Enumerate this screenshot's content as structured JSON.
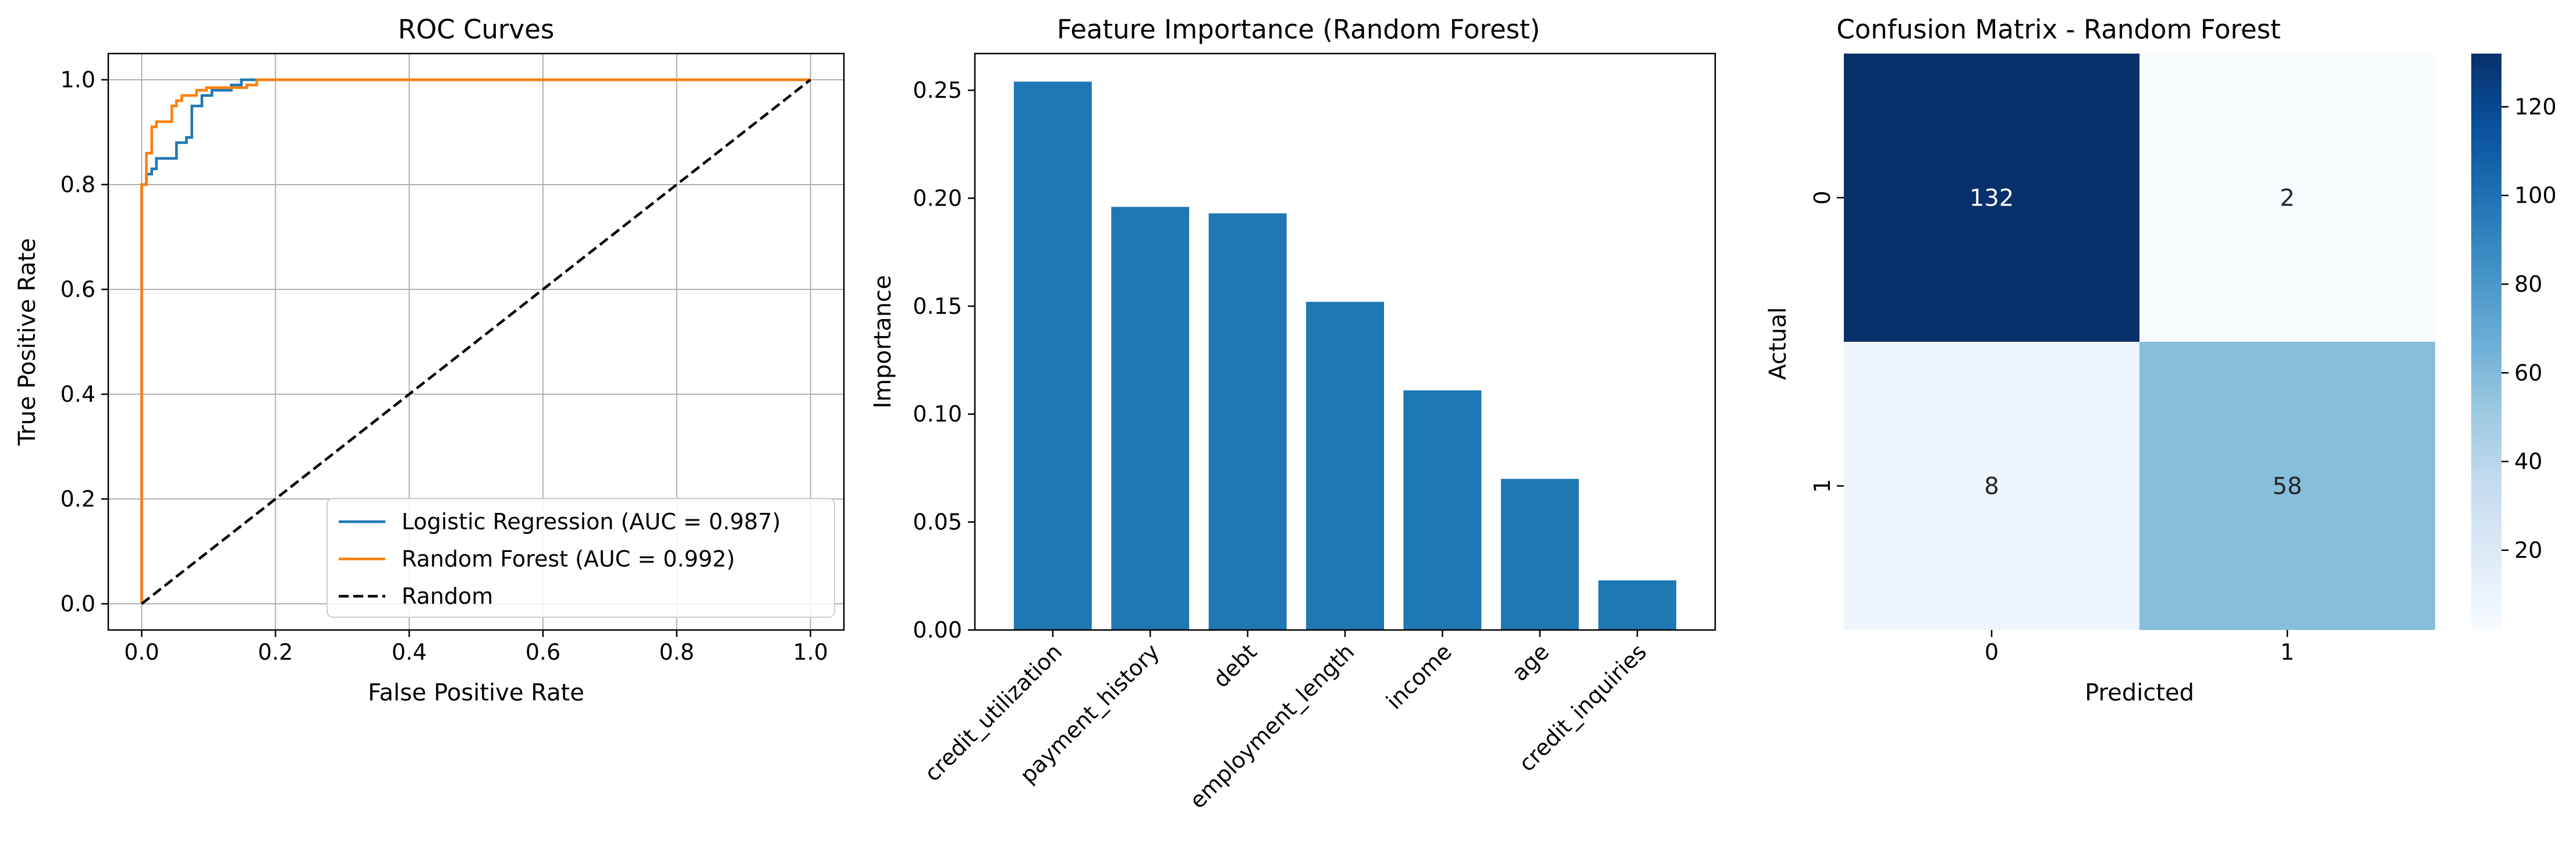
{
  "chart_data": [
    {
      "type": "line",
      "title": "ROC Curves",
      "xlabel": "False Positive Rate",
      "ylabel": "True Positive Rate",
      "xlim": [
        -0.05,
        1.05
      ],
      "ylim": [
        -0.05,
        1.05
      ],
      "x_ticks": [
        0.0,
        0.2,
        0.4,
        0.6,
        0.8,
        1.0
      ],
      "y_ticks": [
        0.0,
        0.2,
        0.4,
        0.6,
        0.8,
        1.0
      ],
      "x_tick_labels": [
        "0.0",
        "0.2",
        "0.4",
        "0.6",
        "0.8",
        "1.0"
      ],
      "y_tick_labels": [
        "0.0",
        "0.2",
        "0.4",
        "0.6",
        "0.8",
        "1.0"
      ],
      "grid": true,
      "legend": "lower-right",
      "series": [
        {
          "name": "Logistic Regression (AUC = 0.987)",
          "color": "#1f77b4",
          "style": "solid",
          "x": [
            0,
            0,
            0.007,
            0.007,
            0.015,
            0.015,
            0.022,
            0.022,
            0.052,
            0.052,
            0.067,
            0.067,
            0.075,
            0.075,
            0.09,
            0.09,
            0.105,
            0.105,
            0.134,
            0.134,
            0.149,
            0.149,
            1.0
          ],
          "y": [
            0,
            0.8,
            0.8,
            0.82,
            0.82,
            0.83,
            0.83,
            0.85,
            0.85,
            0.88,
            0.88,
            0.89,
            0.89,
            0.95,
            0.95,
            0.97,
            0.97,
            0.98,
            0.98,
            0.99,
            0.99,
            1.0,
            1.0
          ]
        },
        {
          "name": "Random Forest (AUC = 0.992)",
          "color": "#ff7f0e",
          "style": "solid",
          "x": [
            0,
            0,
            0.007,
            0.007,
            0.015,
            0.015,
            0.022,
            0.022,
            0.045,
            0.045,
            0.052,
            0.052,
            0.06,
            0.06,
            0.082,
            0.082,
            0.097,
            0.097,
            0.157,
            0.157,
            0.172,
            0.172,
            1.0
          ],
          "y": [
            0,
            0.8,
            0.8,
            0.86,
            0.86,
            0.91,
            0.91,
            0.92,
            0.92,
            0.95,
            0.95,
            0.96,
            0.96,
            0.97,
            0.97,
            0.98,
            0.98,
            0.985,
            0.985,
            0.99,
            0.99,
            1.0,
            1.0
          ]
        },
        {
          "name": "Random",
          "color": "#000000",
          "style": "dashed",
          "x": [
            0,
            1
          ],
          "y": [
            0,
            1
          ]
        }
      ]
    },
    {
      "type": "bar",
      "title": "Feature Importance (Random Forest)",
      "xlabel": "",
      "ylabel": "Importance",
      "ylim": [
        0,
        0.267
      ],
      "y_ticks": [
        0.0,
        0.05,
        0.1,
        0.15,
        0.2,
        0.25
      ],
      "y_tick_labels": [
        "0.00",
        "0.05",
        "0.10",
        "0.15",
        "0.20",
        "0.25"
      ],
      "categories": [
        "credit_utilization",
        "payment_history",
        "debt",
        "employment_length",
        "income",
        "age",
        "credit_inquiries"
      ],
      "values": [
        0.254,
        0.196,
        0.193,
        0.152,
        0.111,
        0.07,
        0.023
      ],
      "color": "#1f77b4",
      "grid": false
    },
    {
      "type": "heatmap",
      "title": "Confusion Matrix - Random Forest",
      "xlabel": "Predicted",
      "ylabel": "Actual",
      "x_tick_labels": [
        "0",
        "1"
      ],
      "y_tick_labels": [
        "0",
        "1"
      ],
      "values": [
        [
          132,
          2
        ],
        [
          8,
          58
        ]
      ],
      "cell_labels": [
        [
          "132",
          "2"
        ],
        [
          "8",
          "58"
        ]
      ],
      "colormap": "Blues",
      "colorbar_range": [
        2,
        132
      ],
      "colorbar_ticks": [
        20,
        40,
        60,
        80,
        100,
        120
      ],
      "colorbar_tick_labels": [
        "20",
        "40",
        "60",
        "80",
        "100",
        "120"
      ]
    }
  ]
}
